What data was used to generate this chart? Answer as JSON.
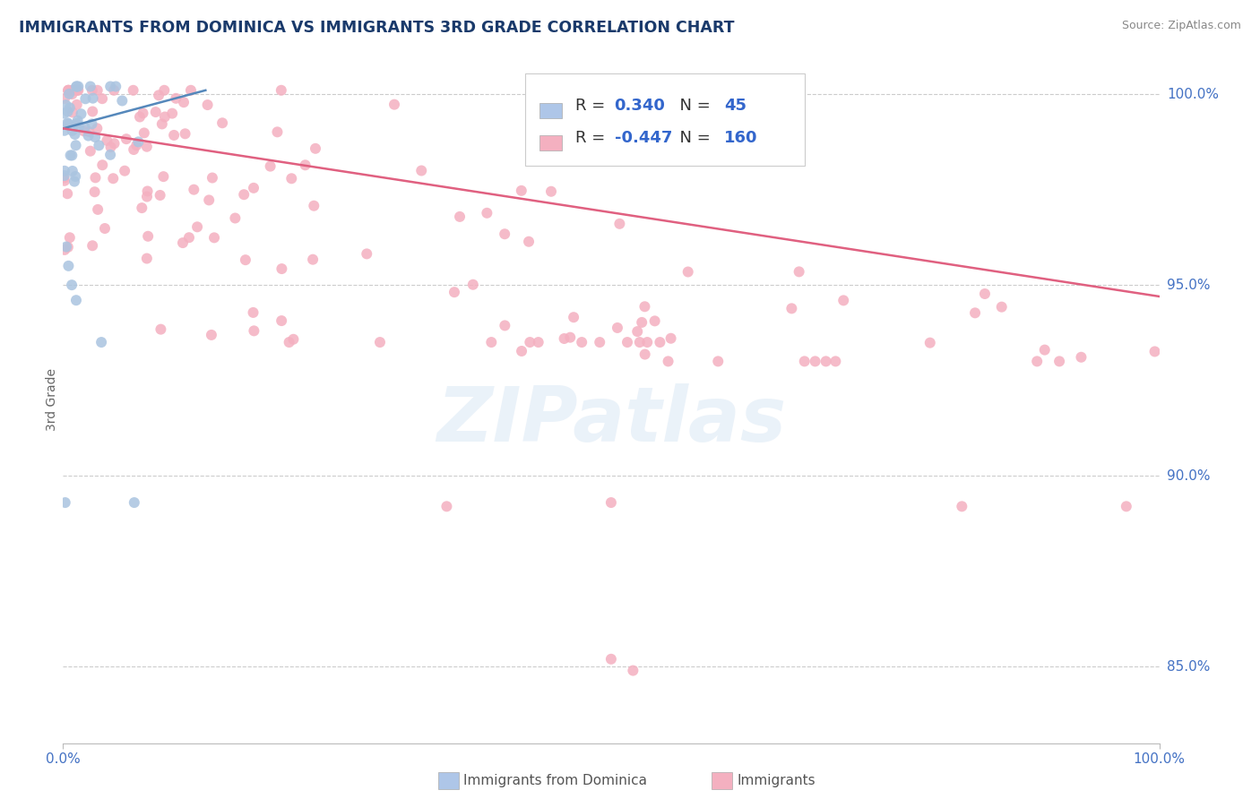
{
  "title": "IMMIGRANTS FROM DOMINICA VS IMMIGRANTS 3RD GRADE CORRELATION CHART",
  "source_text": "Source: ZipAtlas.com",
  "ylabel": "3rd Grade",
  "xmin": 0.0,
  "xmax": 1.0,
  "ymin": 0.83,
  "ymax": 1.01,
  "y_tick_values": [
    0.85,
    0.9,
    0.95,
    1.0
  ],
  "y_tick_labels": [
    "85.0%",
    "90.0%",
    "95.0%",
    "100.0%"
  ],
  "legend_blue_color": "#aec6e8",
  "legend_pink_color": "#f4b0c0",
  "blue_scatter_color": "#aac4e0",
  "pink_scatter_color": "#f4b0c0",
  "blue_line_color": "#5588bb",
  "pink_line_color": "#e06080",
  "axis_label_color": "#4472c4",
  "title_color": "#1a3a6b",
  "background_color": "#ffffff",
  "grid_color": "#cccccc",
  "watermark": "ZIPatlas",
  "blue_R": "0.340",
  "blue_N": "45",
  "pink_R": "-0.447",
  "pink_N": "160",
  "blue_line_x0": 0.0,
  "blue_line_y0": 0.991,
  "blue_line_x1": 0.13,
  "blue_line_y1": 1.001,
  "pink_line_x0": 0.0,
  "pink_line_y0": 0.991,
  "pink_line_x1": 1.0,
  "pink_line_y1": 0.947
}
